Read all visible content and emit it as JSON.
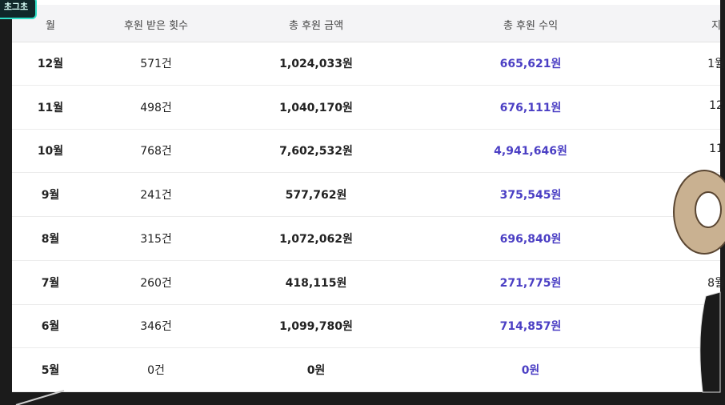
{
  "overlay_badge": "초그초",
  "table": {
    "headers": [
      "월",
      "후원 받은 횟수",
      "총 후원 금액",
      "총 후원 수익",
      "지"
    ],
    "rows": [
      [
        "12월",
        "571건",
        "1,024,033원",
        "665,621원"
      ],
      [
        "11월",
        "498건",
        "1,040,170원",
        "676,111원"
      ],
      [
        "10월",
        "768건",
        "7,602,532원",
        "4,941,646원"
      ],
      [
        "9월",
        "241건",
        "577,762원",
        "375,545원"
      ],
      [
        "8월",
        "315건",
        "1,072,062원",
        "696,840원"
      ],
      [
        "7월",
        "260건",
        "418,115원",
        "271,775원"
      ],
      [
        "6월",
        "346건",
        "1,099,780원",
        "714,857원"
      ],
      [
        "5월",
        "0건",
        "0원",
        "0원"
      ]
    ],
    "edge_cells": {
      "0": "1월",
      "1": "12",
      "2": "11",
      "5": "8월"
    }
  }
}
